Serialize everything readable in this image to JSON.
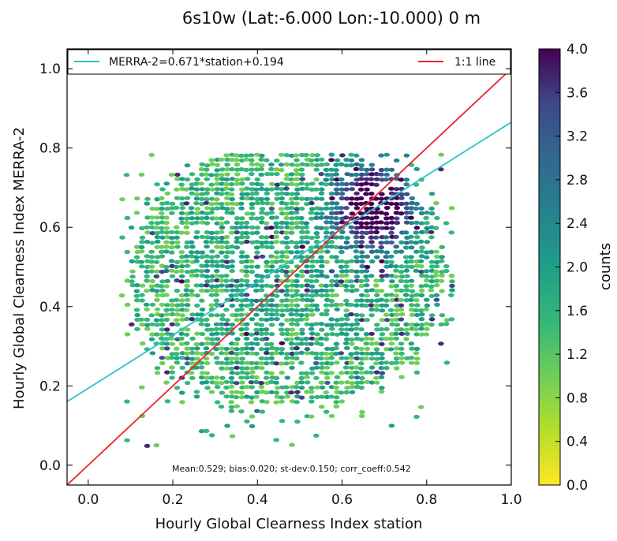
{
  "chart_data": {
    "type": "hexbin-scatter",
    "title": "6s10w (Lat:-6.000 Lon:-10.000) 0 m",
    "xlabel": "Hourly Global Clearness Index station",
    "ylabel": "Hourly Global Clearness Index MERRA-2",
    "xlim": [
      -0.05,
      1.0
    ],
    "ylim": [
      -0.05,
      1.05
    ],
    "x_ticks": [
      "0.0",
      "0.2",
      "0.4",
      "0.6",
      "0.8",
      "1.0"
    ],
    "y_ticks": [
      "0.0",
      "0.2",
      "0.4",
      "0.6",
      "0.8",
      "1.0"
    ],
    "grid": false,
    "legend_position": "top, spanning full width",
    "lines": [
      {
        "name": "MERRA-2=0.671*station+0.194",
        "slope": 0.671,
        "intercept": 0.194,
        "color": "#2bc4c8"
      },
      {
        "name": "1:1 line",
        "slope": 1.0,
        "intercept": 0.0,
        "color": "#e8252a"
      }
    ],
    "stats_annotation": "Mean:0.529; bias:0.020; st-dev:0.150; corr_coeff:0.542",
    "colorbar": {
      "label": "counts",
      "min": 0.0,
      "max": 4.0,
      "ticks": [
        "0.0",
        "0.4",
        "0.8",
        "1.2",
        "1.6",
        "2.0",
        "2.4",
        "2.8",
        "3.2",
        "3.6",
        "4.0"
      ],
      "colormap": "viridis"
    },
    "hexbin": {
      "description": "hexagonal bin counts; dense core (counts >= 4) near station 0.6-0.78, MERRA-2 0.5-0.78",
      "station_range": [
        0.08,
        0.87
      ],
      "merra_range": [
        0.05,
        0.78
      ],
      "dense_center": [
        0.68,
        0.65
      ]
    }
  }
}
